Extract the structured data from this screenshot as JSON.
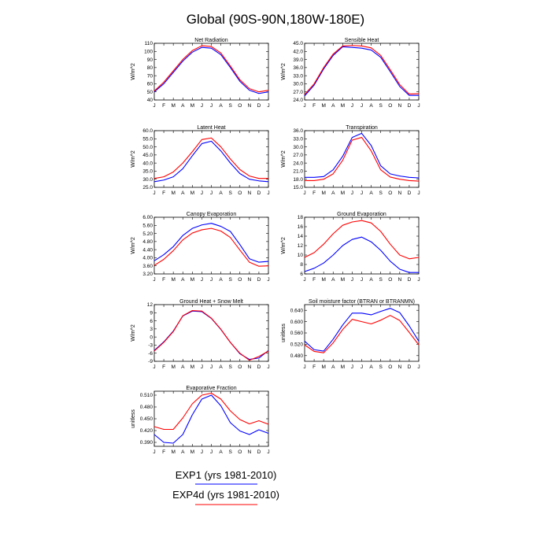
{
  "title": "Global (90S-90N,180W-180E)",
  "months": [
    "J",
    "F",
    "M",
    "A",
    "M",
    "J",
    "J",
    "A",
    "S",
    "O",
    "N",
    "D",
    "J"
  ],
  "colors": {
    "exp1": "#0000ff",
    "exp4d": "#ff0000",
    "axis": "#000000"
  },
  "legend": [
    {
      "label": "EXP1 (yrs 1981-2010)",
      "color": "#0000ff"
    },
    {
      "label": "EXP4d (yrs 1981-2010)",
      "color": "#ff0000"
    }
  ],
  "chart_data": [
    {
      "type": "line",
      "title": "Net Radiation",
      "ylabel": "W/m^2",
      "ylim": [
        40,
        110
      ],
      "yticks": [
        "40",
        "50",
        "60",
        "70",
        "80",
        "90",
        "100",
        "110"
      ],
      "series": [
        {
          "name": "EXP1 (yrs 1981-2010)",
          "values": [
            50,
            60,
            74,
            88,
            99,
            105,
            104,
            96,
            80,
            63,
            52,
            48,
            50
          ]
        },
        {
          "name": "EXP4d (yrs 1981-2010)",
          "values": [
            51,
            62,
            76,
            90,
            101,
            107,
            106,
            98,
            82,
            65,
            54,
            50,
            52
          ]
        }
      ]
    },
    {
      "type": "line",
      "title": "Sensible Heat",
      "ylabel": "W/m^2",
      "ylim": [
        24,
        45
      ],
      "yticks": [
        "24.0",
        "27.0",
        "30.0",
        "33.0",
        "36.0",
        "39.0",
        "42.0",
        "45.0"
      ],
      "series": [
        {
          "name": "EXP1 (yrs 1981-2010)",
          "values": [
            25.5,
            29.5,
            35.5,
            40.5,
            43.7,
            43.5,
            43.2,
            42.5,
            39.8,
            34.5,
            29.0,
            25.7,
            25.7
          ]
        },
        {
          "name": "EXP4d (yrs 1981-2010)",
          "values": [
            26.0,
            30.0,
            36.0,
            41.0,
            44.0,
            44.2,
            44.0,
            43.3,
            40.5,
            35.2,
            29.7,
            26.2,
            26.3
          ]
        }
      ]
    },
    {
      "type": "line",
      "title": "Latent Heat",
      "ylabel": "W/m^2",
      "ylim": [
        25,
        60
      ],
      "yticks": [
        "25.0",
        "30.0",
        "35.0",
        "40.0",
        "45.0",
        "50.0",
        "55.0",
        "60.0"
      ],
      "series": [
        {
          "name": "EXP1 (yrs 1981-2010)",
          "values": [
            28.5,
            29.5,
            31.5,
            36.5,
            44.5,
            52.0,
            53.5,
            47.5,
            40.0,
            33.5,
            30.0,
            29.0,
            28.5
          ]
        },
        {
          "name": "EXP4d (yrs 1981-2010)",
          "values": [
            30.5,
            31.5,
            34.5,
            40.0,
            47.0,
            54.5,
            55.5,
            50.0,
            42.5,
            36.0,
            32.0,
            30.5,
            30.5
          ]
        }
      ]
    },
    {
      "type": "line",
      "title": "Transpiration",
      "ylabel": "W/m^2",
      "ylim": [
        15,
        36
      ],
      "yticks": [
        "15.0",
        "18.0",
        "21.0",
        "24.0",
        "27.0",
        "30.0",
        "33.0",
        "36.0"
      ],
      "series": [
        {
          "name": "EXP1 (yrs 1981-2010)",
          "values": [
            18.7,
            18.7,
            19.0,
            21.5,
            26.5,
            33.5,
            35.0,
            30.5,
            23.0,
            20.0,
            19.2,
            18.7,
            18.5
          ]
        },
        {
          "name": "EXP4d (yrs 1981-2010)",
          "values": [
            17.5,
            17.5,
            18.0,
            20.0,
            25.0,
            32.5,
            33.5,
            28.5,
            21.5,
            18.8,
            18.0,
            17.5,
            17.3
          ]
        }
      ]
    },
    {
      "type": "line",
      "title": "Canopy Evaporation",
      "ylabel": "W/m^2",
      "ylim": [
        3.2,
        6.0
      ],
      "yticks": [
        "3.20",
        "3.60",
        "4.00",
        "4.40",
        "4.80",
        "5.20",
        "5.60",
        "6.00"
      ],
      "series": [
        {
          "name": "EXP1 (yrs 1981-2010)",
          "values": [
            3.85,
            4.15,
            4.55,
            5.1,
            5.45,
            5.62,
            5.7,
            5.55,
            5.3,
            4.65,
            3.95,
            3.78,
            3.82
          ]
        },
        {
          "name": "EXP4d (yrs 1981-2010)",
          "values": [
            3.62,
            3.92,
            4.35,
            4.88,
            5.22,
            5.38,
            5.45,
            5.32,
            5.0,
            4.38,
            3.78,
            3.58,
            3.6
          ]
        }
      ]
    },
    {
      "type": "line",
      "title": "Ground Evaporation",
      "ylabel": "W/m^2",
      "ylim": [
        6,
        18
      ],
      "yticks": [
        "6",
        "8",
        "10",
        "12",
        "14",
        "16",
        "18"
      ],
      "series": [
        {
          "name": "EXP1 (yrs 1981-2010)",
          "values": [
            6.5,
            7.2,
            8.3,
            10.0,
            12.0,
            13.3,
            13.8,
            12.8,
            11.0,
            8.7,
            7.0,
            6.3,
            6.3
          ]
        },
        {
          "name": "EXP4d (yrs 1981-2010)",
          "values": [
            9.5,
            10.5,
            12.3,
            14.5,
            16.3,
            17.0,
            17.3,
            16.8,
            15.0,
            12.3,
            10.0,
            9.2,
            9.5
          ]
        }
      ]
    },
    {
      "type": "line",
      "title": "Ground Heat + Snow Melt",
      "ylabel": "W/m^2",
      "ylim": [
        -9,
        12
      ],
      "yticks": [
        "-9",
        "-6",
        "-3",
        "0",
        "3",
        "6",
        "9",
        "12"
      ],
      "series": [
        {
          "name": "EXP1 (yrs 1981-2010)",
          "values": [
            -5.0,
            -1.8,
            2.2,
            7.8,
            9.6,
            9.4,
            6.9,
            2.8,
            -2.0,
            -6.2,
            -8.3,
            -7.8,
            -5.0
          ]
        },
        {
          "name": "EXP4d (yrs 1981-2010)",
          "values": [
            -5.2,
            -2.0,
            2.0,
            7.9,
            9.8,
            9.6,
            7.0,
            2.9,
            -2.0,
            -6.0,
            -8.6,
            -7.2,
            -5.2
          ]
        }
      ]
    },
    {
      "type": "line",
      "title": "Soil moisture factor (BTRAN or BTRANMN)",
      "ylabel": "unitless",
      "ylim": [
        0.46,
        0.66
      ],
      "yticks": [
        "0.480",
        "0.520",
        "0.560",
        "0.600",
        "0.640"
      ],
      "series": [
        {
          "name": "EXP1 (yrs 1981-2010)",
          "values": [
            0.531,
            0.501,
            0.496,
            0.538,
            0.588,
            0.63,
            0.63,
            0.624,
            0.636,
            0.647,
            0.632,
            0.585,
            0.531
          ]
        },
        {
          "name": "EXP4d (yrs 1981-2010)",
          "values": [
            0.518,
            0.495,
            0.49,
            0.525,
            0.572,
            0.608,
            0.6,
            0.592,
            0.605,
            0.622,
            0.604,
            0.562,
            0.518
          ]
        }
      ]
    },
    {
      "type": "line",
      "title": "Evaporative Fraction",
      "ylabel": "unitless",
      "ylim": [
        0.38,
        0.52
      ],
      "yticks": [
        "0.390",
        "0.420",
        "0.450",
        "0.480",
        "0.510"
      ],
      "series": [
        {
          "name": "EXP1 (yrs 1981-2010)",
          "values": [
            0.41,
            0.39,
            0.388,
            0.41,
            0.46,
            0.5,
            0.51,
            0.483,
            0.44,
            0.419,
            0.41,
            0.422,
            0.413
          ]
        },
        {
          "name": "EXP4d (yrs 1981-2010)",
          "values": [
            0.43,
            0.423,
            0.423,
            0.452,
            0.488,
            0.51,
            0.515,
            0.5,
            0.47,
            0.448,
            0.437,
            0.445,
            0.436
          ]
        }
      ]
    }
  ]
}
